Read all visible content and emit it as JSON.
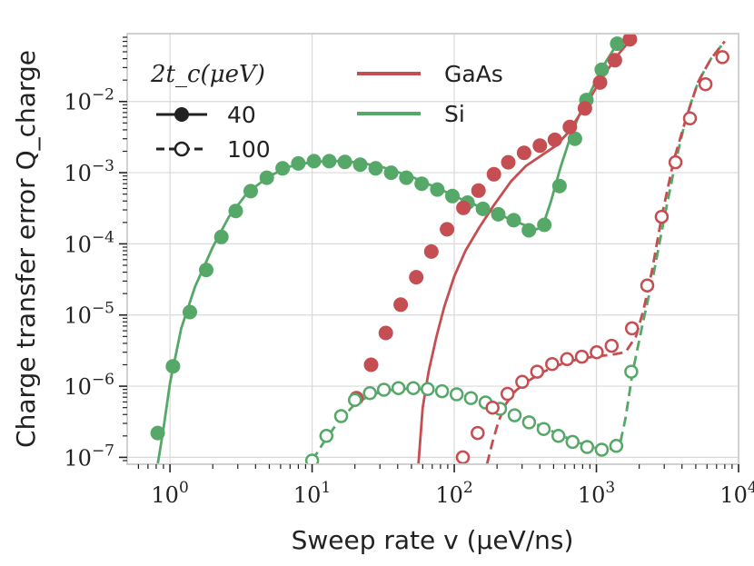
{
  "chart_data": {
    "type": "line",
    "xscale": "log",
    "yscale": "log",
    "xlabel": "Sweep rate v (μeV/ns)",
    "ylabel": "Charge transfer error Q_charge",
    "xlim": [
      0.5,
      10000
    ],
    "ylim": [
      8e-08,
      0.09
    ],
    "xticks": [
      {
        "value": 1,
        "base": "10",
        "exp": "0"
      },
      {
        "value": 10,
        "base": "10",
        "exp": "1"
      },
      {
        "value": 100,
        "base": "10",
        "exp": "2"
      },
      {
        "value": 1000,
        "base": "10",
        "exp": "3"
      },
      {
        "value": 10000,
        "base": "10",
        "exp": "4"
      }
    ],
    "yticks": [
      {
        "value": 1e-07,
        "base": "10",
        "exp": "−7"
      },
      {
        "value": 1e-06,
        "base": "10",
        "exp": "−6"
      },
      {
        "value": 1e-05,
        "base": "10",
        "exp": "−5"
      },
      {
        "value": 0.0001,
        "base": "10",
        "exp": "−4"
      },
      {
        "value": 0.001,
        "base": "10",
        "exp": "−3"
      },
      {
        "value": 0.01,
        "base": "10",
        "exp": "−2"
      }
    ],
    "grid": true,
    "colors": {
      "GaAs": "#c44e52",
      "Si": "#55a868",
      "grid": "#d9d9d9",
      "axis": "#cccccc",
      "ink": "#222222"
    },
    "legend_materials": {
      "position": "top-center",
      "entries": [
        {
          "label": "GaAs",
          "color": "#c44e52"
        },
        {
          "label": "Si",
          "color": "#55a868"
        }
      ]
    },
    "legend_coupling": {
      "position": "top-left",
      "title": "2t_c(μeV)",
      "entries": [
        {
          "label": "40",
          "style": "solid-filled"
        },
        {
          "label": "100",
          "style": "dashed-open"
        }
      ]
    },
    "series": [
      {
        "name": "Si 40 μeV simulation",
        "material": "Si",
        "tc": 40,
        "kind": "markers",
        "marker": "filled",
        "x": [
          0.82,
          1.05,
          1.38,
          1.8,
          2.3,
          2.9,
          3.7,
          4.8,
          6.2,
          8.0,
          10.3,
          13.2,
          17.0,
          21.8,
          28.0,
          36.0,
          46.0,
          59.0,
          76.0,
          97.0,
          124.0,
          159.0,
          204.0,
          262.0,
          335.0,
          430.0,
          550.0,
          706.0,
          850.0,
          1090.0,
          1400.0
        ],
        "y": [
          2.2e-07,
          1.9e-06,
          1.1e-05,
          4.3e-05,
          0.000125,
          0.00029,
          0.00055,
          0.00085,
          0.00115,
          0.00135,
          0.00145,
          0.00145,
          0.00142,
          0.0013,
          0.00115,
          0.001,
          0.00085,
          0.0007,
          0.00058,
          0.00047,
          0.00038,
          0.00031,
          0.00026,
          0.000215,
          0.000155,
          0.000185,
          0.00065,
          0.003,
          0.0105,
          0.028,
          0.065
        ]
      },
      {
        "name": "Si 40 μeV theory",
        "material": "Si",
        "tc": 40,
        "kind": "line",
        "dash": "solid",
        "x": [
          0.82,
          0.9,
          1.0,
          1.2,
          1.5,
          2.0,
          2.6,
          3.5,
          5.0,
          7.0,
          10.0,
          15.0,
          22.0,
          32.0,
          50.0,
          80.0,
          120.0,
          180.0,
          250.0,
          320.0,
          380.0,
          420.0,
          480.0,
          560.0,
          650.0,
          750.0,
          900.0,
          1100.0,
          1400.0
        ],
        "y": [
          8e-08,
          2.5e-07,
          1.1e-06,
          6.5e-06,
          2.5e-05,
          9e-05,
          0.00024,
          0.00052,
          0.0009,
          0.00122,
          0.00142,
          0.00146,
          0.00138,
          0.00118,
          0.00088,
          0.00058,
          0.0004,
          0.00029,
          0.00022,
          0.00018,
          0.00016,
          0.00018,
          0.0004,
          0.0012,
          0.003,
          0.0062,
          0.013,
          0.03,
          0.065
        ]
      },
      {
        "name": "GaAs 40 μeV simulation",
        "material": "GaAs",
        "tc": 40,
        "kind": "markers",
        "marker": "filled",
        "x": [
          20.5,
          26.0,
          33.0,
          42.0,
          54.0,
          69.0,
          89.0,
          116.0,
          148.0,
          190.0,
          240.0,
          310.0,
          400.0,
          510.0,
          650.0,
          830.0,
          1060.0,
          1350.0,
          1720.0
        ],
        "y": [
          6.8e-07,
          2e-06,
          5.6e-06,
          1.4e-05,
          3.4e-05,
          7.8e-05,
          0.00016,
          0.00032,
          0.00056,
          0.00095,
          0.0014,
          0.0019,
          0.0024,
          0.0029,
          0.0044,
          0.008,
          0.0185,
          0.038,
          0.075
        ]
      },
      {
        "name": "GaAs 40 μeV theory",
        "material": "GaAs",
        "tc": 40,
        "kind": "line",
        "dash": "solid",
        "x": [
          56.0,
          60.0,
          66.0,
          75.0,
          85.0,
          100.0,
          120.0,
          150.0,
          190.0,
          250.0,
          320.0,
          420.0,
          520.0,
          620.0,
          720.0,
          850.0,
          1000.0,
          1200.0,
          1450.0,
          1750.0
        ],
        "y": [
          8e-08,
          5e-07,
          1.6e-06,
          5e-06,
          1.3e-05,
          3.5e-05,
          8e-05,
          0.00017,
          0.00035,
          0.00075,
          0.00125,
          0.0018,
          0.0024,
          0.0035,
          0.0055,
          0.009,
          0.016,
          0.028,
          0.048,
          0.075
        ]
      },
      {
        "name": "Si 100 μeV simulation",
        "material": "Si",
        "tc": 100,
        "kind": "markers",
        "marker": "open",
        "x": [
          10.0,
          12.6,
          16.0,
          20.0,
          25.5,
          32.0,
          40.5,
          51.5,
          65.0,
          82.0,
          104.0,
          131.0,
          166.0,
          210.0,
          266.0,
          336.0,
          426.0,
          540.0,
          680.0,
          860.0,
          1090.0,
          1380.0,
          1760.0
        ],
        "y": [
          9e-08,
          2e-07,
          3.8e-07,
          6.4e-07,
          8e-07,
          8.9e-07,
          9.4e-07,
          9.4e-07,
          9.1e-07,
          8.5e-07,
          7.7e-07,
          6.8e-07,
          5.9e-07,
          4.8e-07,
          3.9e-07,
          3.1e-07,
          2.5e-07,
          2e-07,
          1.65e-07,
          1.4e-07,
          1.28e-07,
          1.45e-07,
          1.6e-06
        ]
      },
      {
        "name": "Si 100 μeV theory",
        "material": "Si",
        "tc": 100,
        "kind": "line",
        "dash": "dashed",
        "x": [
          10.0,
          12.0,
          15.0,
          20.0,
          26.0,
          35.0,
          50.0,
          70.0,
          100.0,
          140.0,
          200.0,
          300.0,
          450.0,
          650.0,
          900.0,
          1200.0,
          1450.0,
          1600.0,
          1800.0,
          2100.0,
          2500.0,
          3000.0,
          3600.0,
          4300.0,
          5200.0,
          6400.0,
          8000.0
        ],
        "y": [
          9e-08,
          1.6e-07,
          3e-07,
          5.6e-07,
          7.6e-07,
          8.8e-07,
          9.3e-07,
          8.9e-07,
          7.8e-07,
          6.4e-07,
          5e-07,
          3.6e-07,
          2.5e-07,
          1.8e-07,
          1.4e-07,
          1.3e-07,
          1.4e-07,
          3.5e-07,
          1.6e-06,
          7e-06,
          3.4e-05,
          0.00023,
          0.0014,
          0.0062,
          0.019,
          0.04,
          0.07
        ]
      },
      {
        "name": "GaAs 100 μeV simulation",
        "material": "GaAs",
        "tc": 100,
        "kind": "markers",
        "marker": "open",
        "x": [
          115.0,
          146.0,
          186.0,
          237.0,
          301.0,
          383.0,
          488.0,
          621.0,
          790.0,
          1006.0,
          1280.0,
          1780.0,
          2280.0,
          2880.0,
          3600.0,
          4550.0,
          5850.0,
          7700.0
        ],
        "y": [
          1e-07,
          2.2e-07,
          5e-07,
          7.8e-07,
          1.15e-06,
          1.6e-06,
          2.05e-06,
          2.4e-06,
          2.6e-06,
          3e-06,
          3.7e-06,
          6.5e-06,
          2.6e-05,
          0.00024,
          0.0014,
          0.0058,
          0.0175,
          0.042
        ]
      },
      {
        "name": "GaAs 100 μeV theory",
        "material": "GaAs",
        "tc": 100,
        "kind": "line",
        "dash": "dashed",
        "x": [
          170.0,
          185.0,
          205.0,
          230.0,
          270.0,
          330.0,
          420.0,
          550.0,
          720.0,
          950.0,
          1250.0,
          1600.0,
          1900.0,
          2150.0,
          2450.0,
          2900.0,
          3500.0,
          4300.0,
          5200.0,
          6400.0,
          8000.0
        ],
        "y": [
          8e-08,
          1.6e-07,
          3.2e-07,
          5.6e-07,
          8.6e-07,
          1.18e-06,
          1.58e-06,
          2e-06,
          2.35e-06,
          2.6e-06,
          2.75e-06,
          3e-06,
          5e-06,
          1.2e-05,
          4e-05,
          0.00026,
          0.0015,
          0.006,
          0.019,
          0.04,
          0.07
        ]
      }
    ]
  }
}
